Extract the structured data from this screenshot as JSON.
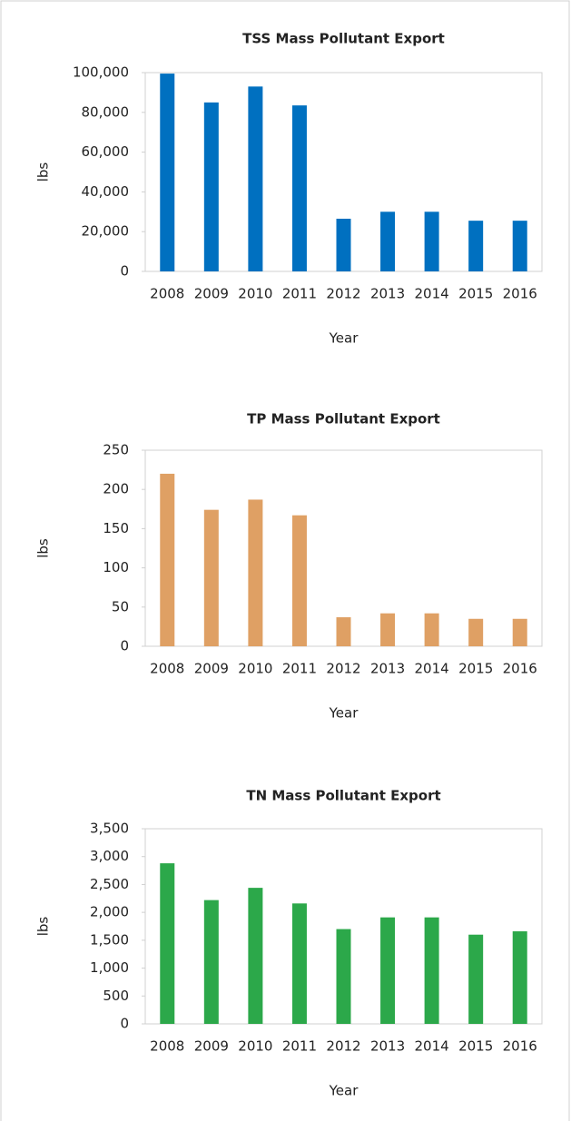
{
  "chart_data": [
    {
      "type": "bar",
      "title": "TSS Mass Pollutant Export",
      "x_label": "Year",
      "y_label": "lbs",
      "color": "#0070c0",
      "categories": [
        "2008",
        "2009",
        "2010",
        "2011",
        "2012",
        "2013",
        "2014",
        "2015",
        "2016"
      ],
      "values": [
        99500,
        85000,
        93000,
        83500,
        26500,
        30000,
        30000,
        25500,
        25500
      ],
      "ylim": [
        0,
        100000
      ],
      "yticks": [
        0,
        {
          "value": 20000,
          "label": "20,000"
        },
        {
          "value": 40000,
          "label": "40,000"
        },
        {
          "value": 60000,
          "label": "60,000"
        },
        {
          "value": 80000,
          "label": "80,000"
        },
        {
          "value": 100000,
          "label": "100,000"
        }
      ]
    },
    {
      "type": "bar",
      "title": "TP Mass Pollutant Export",
      "x_label": "Year",
      "y_label": "lbs",
      "color": "#dfa064",
      "categories": [
        "2008",
        "2009",
        "2010",
        "2011",
        "2012",
        "2013",
        "2014",
        "2015",
        "2016"
      ],
      "values": [
        220,
        174,
        187,
        167,
        37,
        42,
        42,
        35,
        35
      ],
      "ylim": [
        0,
        250
      ],
      "yticks": [
        0,
        50,
        100,
        150,
        200,
        250
      ]
    },
    {
      "type": "bar",
      "title": "TN Mass Pollutant Export",
      "x_label": "Year",
      "y_label": "lbs",
      "color": "#2ca84a",
      "categories": [
        "2008",
        "2009",
        "2010",
        "2011",
        "2012",
        "2013",
        "2014",
        "2015",
        "2016"
      ],
      "values": [
        2880,
        2220,
        2440,
        2160,
        1700,
        1910,
        1910,
        1600,
        1660
      ],
      "ylim": [
        0,
        3500
      ],
      "yticks": [
        0,
        500,
        {
          "value": 1000,
          "label": "1,000"
        },
        {
          "value": 1500,
          "label": "1,500"
        },
        {
          "value": 2000,
          "label": "2,000"
        },
        {
          "value": 2500,
          "label": "2,500"
        },
        {
          "value": 3000,
          "label": "3,000"
        },
        {
          "value": 3500,
          "label": "3,500"
        }
      ]
    }
  ]
}
